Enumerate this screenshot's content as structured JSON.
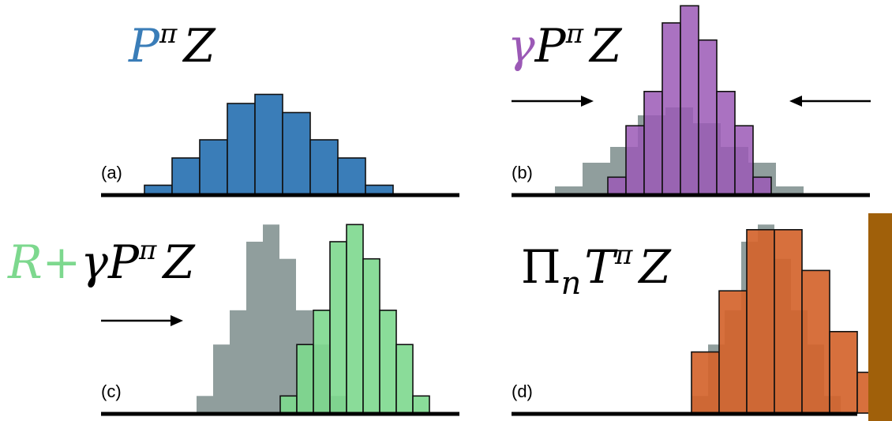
{
  "colors": {
    "blue": "#3a7db8",
    "purple": "#9b59b6",
    "green": "#7dd88e",
    "orange": "#d4642c",
    "gray": "#909e9d",
    "black": "#000000",
    "bar": "#a0600a",
    "outline": "#111111"
  },
  "panels": [
    {
      "id": "a",
      "label": "(a)",
      "formula_prefix": "",
      "formula_main": "P",
      "formula_sup": "π",
      "formula_sub": "",
      "formula_tail": "Z",
      "formula_color": "blue",
      "arrows": []
    },
    {
      "id": "b",
      "label": "(b)",
      "formula_prefix": "γ",
      "formula_main": "P",
      "formula_sup": "π",
      "formula_sub": "",
      "formula_tail": "Z",
      "formula_color": "purple",
      "arrows": [
        "right",
        "left"
      ]
    },
    {
      "id": "c",
      "label": "(c)",
      "formula_prefix": "R+",
      "formula_main": "γP",
      "formula_sup": "π",
      "formula_sub": "",
      "formula_tail": "Z",
      "formula_color": "green",
      "arrows": [
        "right"
      ]
    },
    {
      "id": "d",
      "label": "(d)",
      "formula_prefix": "",
      "formula_main": "Π",
      "formula_sup": "π",
      "formula_sub": "n",
      "formula_tail": "T",
      "formula_end": "Z",
      "formula_color": "black",
      "arrows": []
    }
  ],
  "histograms": {
    "a": {
      "counts": [
        1,
        4,
        6,
        10,
        11,
        9,
        6,
        4,
        1
      ]
    },
    "b_gray": {
      "counts": [
        1,
        4,
        6,
        10,
        11,
        9,
        6,
        4,
        1
      ]
    },
    "b_purple": {
      "counts": [
        1,
        4,
        6,
        10,
        11,
        9,
        6,
        4,
        1
      ]
    },
    "c_gray": {
      "counts": [
        1,
        4,
        6,
        10,
        11,
        9,
        6,
        4,
        1
      ]
    },
    "c_green": {
      "counts": [
        1,
        4,
        6,
        10,
        11,
        9,
        6,
        4,
        1
      ]
    },
    "d_gray": {
      "counts": [
        1,
        4,
        6,
        10,
        11,
        9,
        6,
        4,
        1
      ]
    },
    "d_orange": {
      "counts": [
        3,
        6,
        9,
        9,
        7,
        4,
        2
      ]
    }
  }
}
